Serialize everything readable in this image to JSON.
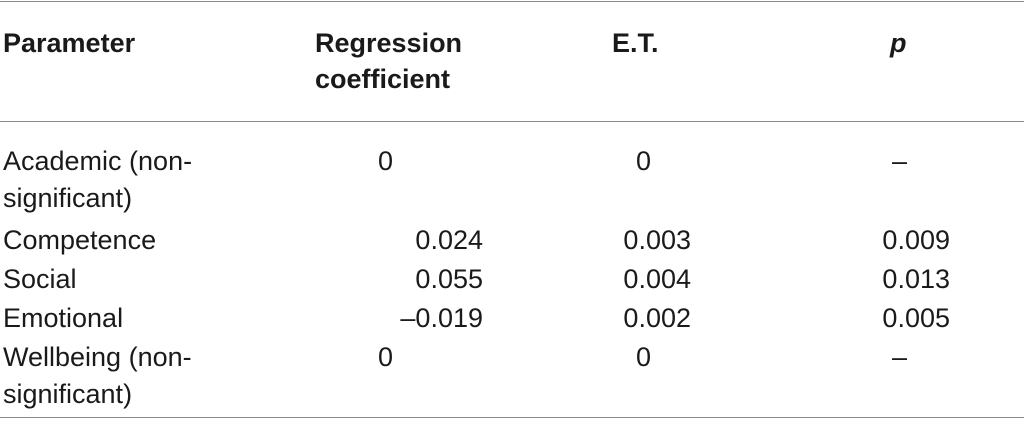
{
  "table": {
    "headers": {
      "parameter": "Parameter",
      "regression_line1": "Regression",
      "regression_line2": "coefficient",
      "et": "E.T.",
      "p": "p"
    },
    "rows": [
      {
        "parameter_line1": "Academic (non-",
        "parameter_line2": "significant)",
        "regression": "0",
        "et": "0",
        "p": "–"
      },
      {
        "parameter_line1": "Competence",
        "regression": "0.024",
        "et": "0.003",
        "p": "0.009"
      },
      {
        "parameter_line1": "Social",
        "regression": "0.055",
        "et": "0.004",
        "p": "0.013"
      },
      {
        "parameter_line1": "Emotional",
        "regression": "–0.019",
        "et": "0.002",
        "p": "0.005"
      },
      {
        "parameter_line1": "Wellbeing (non-",
        "parameter_line2": "significant)",
        "regression": "0",
        "et": "0",
        "p": "–"
      }
    ]
  }
}
